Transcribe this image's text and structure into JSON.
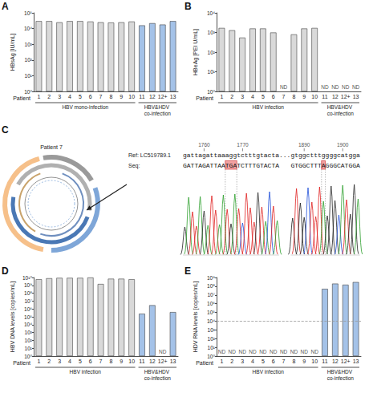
{
  "chart_data": [
    {
      "type": "bar",
      "panel": "A",
      "y_label": "HBsAg [IU/mL]",
      "x_label": "Patient",
      "categories": [
        "1",
        "2",
        "3",
        "4",
        "5",
        "6",
        "7",
        "8",
        "9",
        "10",
        "11",
        "12",
        "12+",
        "13"
      ],
      "values": [
        30000,
        30000,
        25000,
        30000,
        30000,
        28000,
        25000,
        24000,
        25000,
        28000,
        16000,
        22000,
        18000,
        30000
      ],
      "colors": [
        "#d9d9d9",
        "#d9d9d9",
        "#d9d9d9",
        "#d9d9d9",
        "#d9d9d9",
        "#d9d9d9",
        "#d9d9d9",
        "#d9d9d9",
        "#d9d9d9",
        "#d9d9d9",
        "#a4c2e8",
        "#a4c2e8",
        "#a4c2e8",
        "#a4c2e8"
      ],
      "log": "y",
      "ylim": [
        1,
        100000
      ],
      "yticks": [
        {
          "value": 1,
          "label": "10⁰"
        },
        {
          "value": 10,
          "label": "10¹"
        },
        {
          "value": 100,
          "label": "10²"
        },
        {
          "value": 1000,
          "label": "10³"
        },
        {
          "value": 10000,
          "label": "10⁴"
        },
        {
          "value": 100000,
          "label": "10⁵"
        }
      ],
      "groups": [
        {
          "label": "HBV mono-infection",
          "categories": [
            "1",
            "10"
          ]
        },
        {
          "label": "HBV&HDV co-infection",
          "categories": [
            "11",
            "13"
          ]
        }
      ]
    },
    {
      "type": "bar",
      "panel": "B",
      "y_label": "HBeAg [PEI U/mL]",
      "x_label": "Patient",
      "categories": [
        "1",
        "2",
        "3",
        "4",
        "5",
        "6",
        "7",
        "8",
        "9",
        "10",
        "11",
        "12",
        "12+",
        "13"
      ],
      "values": [
        1700,
        1300,
        550,
        1600,
        1600,
        1000,
        null,
        800,
        1600,
        1700,
        null,
        null,
        null,
        null
      ],
      "colors": [
        "#d9d9d9",
        "#d9d9d9",
        "#d9d9d9",
        "#d9d9d9",
        "#d9d9d9",
        "#d9d9d9",
        "#d9d9d9",
        "#d9d9d9",
        "#d9d9d9",
        "#d9d9d9",
        "#a4c2e8",
        "#a4c2e8",
        "#a4c2e8",
        "#a4c2e8"
      ],
      "log": "y",
      "ylim": [
        1,
        10000
      ],
      "yticks": [
        {
          "value": 1,
          "label": "10⁰"
        },
        {
          "value": 10,
          "label": "10¹"
        },
        {
          "value": 100,
          "label": "10²"
        },
        {
          "value": 1000,
          "label": "10³"
        },
        {
          "value": 10000,
          "label": "10⁴"
        }
      ],
      "annotations": [
        {
          "category": "7",
          "text": "ND"
        },
        {
          "category": "11",
          "text": "ND"
        },
        {
          "category": "12",
          "text": "ND"
        },
        {
          "category": "12+",
          "text": "ND"
        },
        {
          "category": "13",
          "text": "ND"
        }
      ],
      "groups": [
        {
          "label": "HBV infection",
          "categories": [
            "1",
            "10"
          ]
        },
        {
          "label": "HBV&HDV co-infection",
          "categories": [
            "11",
            "13"
          ]
        }
      ]
    },
    {
      "type": "bar",
      "panel": "D",
      "y_label": "HBV DNA levels [copies/mL]",
      "x_label": "Patient",
      "categories": [
        "1",
        "2",
        "3",
        "4",
        "5",
        "6",
        "7",
        "8",
        "9",
        "10",
        "11",
        "12",
        "12+",
        "13"
      ],
      "values": [
        6000000000,
        8000000000,
        9000000000,
        9000000000,
        9000000000,
        10000000000,
        1500000000,
        7000000000,
        7000000000,
        6000000000,
        250000,
        3000000,
        null,
        400000
      ],
      "colors": [
        "#d9d9d9",
        "#d9d9d9",
        "#d9d9d9",
        "#d9d9d9",
        "#d9d9d9",
        "#d9d9d9",
        "#d9d9d9",
        "#d9d9d9",
        "#d9d9d9",
        "#d9d9d9",
        "#a4c2e8",
        "#a4c2e8",
        "#a4c2e8",
        "#a4c2e8"
      ],
      "log": "y",
      "ylim": [
        1,
        10000000000
      ],
      "yticks": [
        {
          "value": 1,
          "label": "10⁰"
        },
        {
          "value": 10,
          "label": "10¹"
        },
        {
          "value": 100,
          "label": "10²"
        },
        {
          "value": 1000,
          "label": "10³"
        },
        {
          "value": 10000,
          "label": "10⁴"
        },
        {
          "value": 100000,
          "label": "10⁵"
        },
        {
          "value": 1000000,
          "label": "10⁶"
        },
        {
          "value": 10000000,
          "label": "10⁷"
        },
        {
          "value": 100000000,
          "label": "10⁸"
        },
        {
          "value": 1000000000,
          "label": "10⁹"
        },
        {
          "value": 10000000000,
          "label": "10¹⁰"
        }
      ],
      "annotations": [
        {
          "category": "12+",
          "text": "ND"
        }
      ],
      "groups": [
        {
          "label": "HBV infection",
          "categories": [
            "1",
            "10"
          ]
        },
        {
          "label": "HBV&HDV co-infection",
          "categories": [
            "11",
            "13"
          ]
        }
      ]
    },
    {
      "type": "bar",
      "panel": "E",
      "y_label": "HDV RNA levels [copies/mL]",
      "x_label": "Patient",
      "categories": [
        "1",
        "2",
        "3",
        "4",
        "5",
        "6",
        "7",
        "8",
        "9",
        "10",
        "11",
        "12",
        "12+",
        "13"
      ],
      "values": [
        null,
        null,
        null,
        null,
        null,
        null,
        null,
        null,
        null,
        null,
        50000000,
        200000000,
        150000000,
        300000000
      ],
      "colors": [
        "#d9d9d9",
        "#d9d9d9",
        "#d9d9d9",
        "#d9d9d9",
        "#d9d9d9",
        "#d9d9d9",
        "#d9d9d9",
        "#d9d9d9",
        "#d9d9d9",
        "#d9d9d9",
        "#a4c2e8",
        "#a4c2e8",
        "#a4c2e8",
        "#a4c2e8"
      ],
      "log": "y",
      "ylim": [
        1,
        1000000000
      ],
      "yticks": [
        {
          "value": 1,
          "label": "10⁰"
        },
        {
          "value": 10,
          "label": "10¹"
        },
        {
          "value": 100,
          "label": "10²"
        },
        {
          "value": 1000,
          "label": "10³"
        },
        {
          "value": 10000,
          "label": "10⁴"
        },
        {
          "value": 100000,
          "label": "10⁵"
        },
        {
          "value": 1000000,
          "label": "10⁶"
        },
        {
          "value": 10000000,
          "label": "10⁷"
        },
        {
          "value": 100000000,
          "label": "10⁸"
        },
        {
          "value": 1000000000,
          "label": "10⁹"
        }
      ],
      "detection_limit": 10000,
      "annotations": [
        {
          "category": "1",
          "text": "ND"
        },
        {
          "category": "2",
          "text": "ND"
        },
        {
          "category": "3",
          "text": "ND"
        },
        {
          "category": "4",
          "text": "ND"
        },
        {
          "category": "5",
          "text": "ND"
        },
        {
          "category": "6",
          "text": "ND"
        },
        {
          "category": "7",
          "text": "ND"
        },
        {
          "category": "8",
          "text": "ND"
        },
        {
          "category": "9",
          "text": "ND"
        },
        {
          "category": "10",
          "text": "ND"
        }
      ],
      "groups": [
        {
          "label": "HBV infection",
          "categories": [
            "1",
            "10"
          ]
        },
        {
          "label": "HBV&HDV co-infection",
          "categories": [
            "11",
            "13"
          ]
        }
      ]
    }
  ],
  "panel_c": {
    "panel": "C",
    "title": "Patient 7",
    "reference": {
      "label": "Ref: LC519789.1",
      "segments": [
        {
          "sequence": "gattagattaaaggtctttgtacta",
          "positions": [
            1760,
            1770
          ]
        },
        {
          "sequence": "gtggctttggggcatgga",
          "positions": [
            1890,
            1900
          ]
        }
      ]
    },
    "separator": "...",
    "read": {
      "label": "Seq:",
      "segments": [
        [
          {
            "text": "GATTAGATTAA"
          },
          {
            "text": "TGA",
            "highlight": true
          },
          {
            "text": "TCTTTGTACTA"
          }
        ],
        [
          {
            "text": "GTGGCTTT"
          },
          {
            "text": "A",
            "highlight": true
          },
          {
            "text": "GGGCATGGA"
          }
        ]
      ]
    }
  }
}
